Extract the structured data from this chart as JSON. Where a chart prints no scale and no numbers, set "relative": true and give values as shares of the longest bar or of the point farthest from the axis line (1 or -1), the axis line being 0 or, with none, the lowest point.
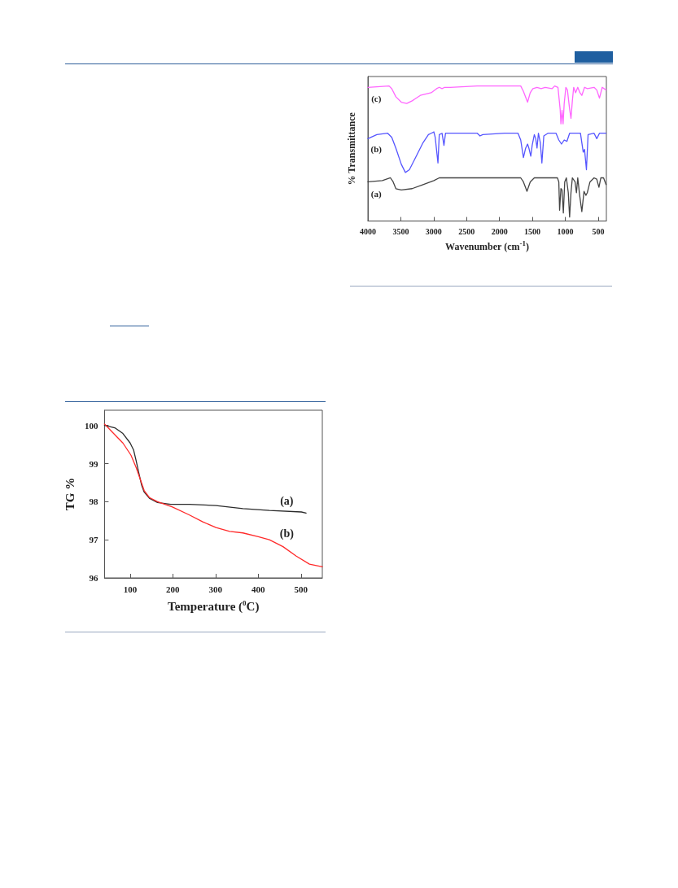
{
  "chart_data": [
    {
      "type": "line",
      "xlabel": "Temperature ($^{0}$C)",
      "ylabel": "TG %",
      "xlim": [
        40,
        550
      ],
      "ylim": [
        96,
        100.4
      ],
      "xticks": [
        100,
        200,
        300,
        400,
        500
      ],
      "yticks": [
        96,
        97,
        98,
        99,
        100
      ],
      "series": [
        {
          "name": "(a)",
          "color": "#2b2b2b",
          "x": [
            40,
            64,
            83,
            100,
            108,
            114,
            121,
            127,
            133,
            145,
            164,
            195,
            239,
            301,
            364,
            426,
            501,
            512
          ],
          "values": [
            100,
            99.94,
            99.79,
            99.54,
            99.36,
            99.08,
            98.72,
            98.43,
            98.25,
            98.09,
            97.98,
            97.93,
            97.93,
            97.9,
            97.82,
            97.77,
            97.73,
            97.7
          ]
        },
        {
          "name": "(b)",
          "color": "#ff2a2a",
          "x": [
            40,
            58,
            83,
            102,
            114,
            124,
            133,
            145,
            164,
            199,
            239,
            270,
            301,
            333,
            364,
            400,
            426,
            458,
            489,
            520,
            550
          ],
          "values": [
            100.04,
            99.83,
            99.54,
            99.22,
            98.9,
            98.58,
            98.29,
            98.11,
            98.0,
            97.86,
            97.65,
            97.47,
            97.32,
            97.22,
            97.18,
            97.08,
            97.0,
            96.82,
            96.57,
            96.36,
            96.29
          ]
        }
      ]
    },
    {
      "type": "line",
      "relative": true,
      "xlabel": "Wavenumber (cm$^{-1}$)",
      "ylabel": "% Transmittance",
      "xlim": [
        4000,
        375
      ],
      "xticks": [
        4000,
        3500,
        3000,
        2500,
        2000,
        1500,
        1000,
        500
      ],
      "series": [
        {
          "name": "(c)",
          "color": "#ff66ff",
          "x": [
            4000,
            3678,
            3637,
            3575,
            3492,
            3410,
            3327,
            3203,
            3038,
            2956,
            2915,
            2873,
            2832,
            2750,
            2337,
            1677,
            1636,
            1573,
            1532,
            1491,
            1429,
            1367,
            1305,
            1202,
            1161,
            1111,
            1078,
            1066,
            1049,
            1033,
            1016,
            991,
            967,
            934,
            913,
            892,
            872,
            843,
            810,
            777,
            748,
            707,
            665,
            562,
            521,
            480,
            438,
            380
          ],
          "values": [
            0.99,
            1.0,
            0.98,
            0.92,
            0.88,
            0.87,
            0.89,
            0.93,
            0.95,
            0.98,
            0.99,
            0.98,
            0.99,
            0.99,
            1.0,
            1.0,
            0.96,
            0.88,
            0.95,
            0.98,
            0.99,
            0.98,
            0.99,
            0.98,
            1.0,
            0.99,
            0.83,
            0.72,
            0.82,
            0.72,
            0.87,
            0.99,
            0.97,
            0.83,
            0.76,
            0.89,
            0.99,
            0.95,
            0.99,
            0.95,
            0.93,
            0.99,
            0.98,
            0.99,
            0.97,
            0.91,
            0.99,
            0.97
          ]
        },
        {
          "name": "(b)",
          "color": "#5555ff",
          "x": [
            4000,
            3864,
            3699,
            3637,
            3575,
            3492,
            3430,
            3369,
            3286,
            3162,
            3080,
            3038,
            2997,
            2977,
            2935,
            2915,
            2873,
            2844,
            2820,
            2750,
            2337,
            2296,
            2254,
            1924,
            1718,
            1677,
            1636,
            1602,
            1573,
            1553,
            1524,
            1503,
            1470,
            1449,
            1429,
            1408,
            1379,
            1355,
            1326,
            1264,
            1140,
            1098,
            1057,
            1016,
            975,
            934,
            769,
            748,
            727,
            707,
            678,
            653,
            562,
            521,
            480,
            380
          ],
          "values": [
            0.61,
            0.64,
            0.65,
            0.62,
            0.54,
            0.42,
            0.36,
            0.38,
            0.46,
            0.58,
            0.64,
            0.65,
            0.66,
            0.62,
            0.43,
            0.64,
            0.65,
            0.56,
            0.65,
            0.65,
            0.65,
            0.63,
            0.64,
            0.65,
            0.65,
            0.6,
            0.47,
            0.54,
            0.57,
            0.54,
            0.48,
            0.56,
            0.64,
            0.61,
            0.54,
            0.65,
            0.58,
            0.43,
            0.63,
            0.65,
            0.65,
            0.6,
            0.57,
            0.6,
            0.59,
            0.65,
            0.65,
            0.58,
            0.51,
            0.53,
            0.38,
            0.64,
            0.65,
            0.61,
            0.65,
            0.65
          ]
        },
        {
          "name": "(a)",
          "color": "#444444",
          "x": [
            4000,
            3781,
            3657,
            3616,
            3575,
            3492,
            3327,
            3162,
            2997,
            2915,
            2750,
            1677,
            1636,
            1582,
            1532,
            1470,
            1119,
            1098,
            1086,
            1066,
            1049,
            1029,
            1008,
            983,
            954,
            934,
            913,
            892,
            851,
            830,
            810,
            781,
            748,
            715,
            686,
            665,
            624,
            562,
            521,
            488,
            459,
            418,
            380
          ],
          "values": [
            0.29,
            0.3,
            0.32,
            0.29,
            0.24,
            0.23,
            0.24,
            0.27,
            0.3,
            0.32,
            0.32,
            0.32,
            0.29,
            0.22,
            0.29,
            0.32,
            0.32,
            0.29,
            0.08,
            0.24,
            0.23,
            0.06,
            0.29,
            0.32,
            0.21,
            0.03,
            0.21,
            0.32,
            0.29,
            0.21,
            0.32,
            0.19,
            0.07,
            0.22,
            0.19,
            0.21,
            0.29,
            0.32,
            0.31,
            0.25,
            0.32,
            0.32,
            0.27
          ]
        }
      ]
    }
  ]
}
